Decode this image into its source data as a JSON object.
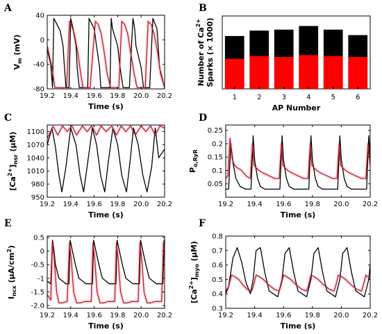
{
  "colors": {
    "black_trace": "#000000",
    "red_trace": "#b22222",
    "bar_black": "#000000",
    "bar_red": "#ff0000",
    "shade": "#ffd6e2"
  },
  "chart_data": [
    {
      "panel": "A",
      "type": "line",
      "xlabel": "Time (s)",
      "ylabel_main": "V",
      "ylabel_sub": "m",
      "ylabel_tail": " (mV)",
      "xlim": [
        19.2,
        20.2
      ],
      "ylim": [
        -80,
        40
      ],
      "xticks": [
        19.2,
        19.4,
        19.6,
        19.8,
        20.0,
        20.2
      ],
      "xtick_labels": [
        "19.2",
        "19.4",
        "19.6",
        "19.8",
        "20.0",
        "20.2"
      ],
      "yticks": [
        -80,
        -40,
        0,
        40
      ],
      "ytick_labels": [
        "-80",
        "-40",
        "0",
        "40"
      ],
      "series": [
        {
          "color_key": "black_trace",
          "x": [
            19.2,
            19.23,
            19.245,
            19.256,
            19.31,
            19.335,
            19.345,
            19.36,
            19.386,
            19.4,
            19.42,
            19.446,
            19.455,
            19.473,
            19.5,
            19.53,
            19.545,
            19.556,
            19.6,
            19.62,
            19.646,
            19.656,
            19.673,
            19.71,
            19.735,
            19.745,
            19.756,
            19.8,
            19.82,
            19.846,
            19.855,
            19.873,
            19.9,
            19.93,
            19.945,
            19.956,
            20.0,
            20.02,
            20.046,
            20.055,
            20.073,
            20.1,
            20.135,
            20.145,
            20.156,
            20.2
          ],
          "y": [
            -15,
            -40,
            -78,
            35,
            15,
            -10,
            -40,
            -78,
            -78,
            35,
            18,
            -10,
            -45,
            -78,
            -78,
            -78,
            -78,
            35,
            18,
            -10,
            -45,
            -78,
            -78,
            -78,
            -78,
            35,
            18,
            -10,
            -45,
            -78,
            -78,
            -78,
            -78,
            35,
            18,
            -10,
            -45,
            -78,
            -78,
            -78,
            -78,
            35,
            18,
            -10,
            -45,
            -78
          ]
        },
        {
          "color_key": "red_trace",
          "x": [
            19.2,
            19.24,
            19.265,
            19.3,
            19.34,
            19.365,
            19.39,
            19.405,
            19.43,
            19.46,
            19.485,
            19.505,
            19.54,
            19.565,
            19.61,
            19.635,
            19.66,
            19.685,
            19.71,
            19.74,
            19.765,
            19.81,
            19.835,
            19.86,
            19.885,
            19.91,
            19.94,
            19.965,
            20.01,
            20.035,
            20.06,
            20.085,
            20.11,
            20.14,
            20.165,
            20.2
          ],
          "y": [
            -10,
            -45,
            -78,
            -78,
            -78,
            -78,
            30,
            25,
            10,
            -20,
            -55,
            -78,
            -78,
            -78,
            30,
            25,
            10,
            -20,
            -55,
            -78,
            -78,
            -78,
            30,
            25,
            10,
            -20,
            -55,
            -78,
            -78,
            -78,
            30,
            25,
            10,
            -20,
            -55,
            -78
          ]
        }
      ]
    },
    {
      "panel": "B",
      "type": "bar",
      "xlabel": "AP Number",
      "ylabel_line1": "Number of Ca",
      "ylabel_sup": "2+",
      "ylabel_line2": "Sparks (× 1000)",
      "categories": [
        "1",
        "2",
        "3",
        "4",
        "5",
        "6"
      ],
      "ylim": [
        0,
        80
      ],
      "series": [
        {
          "color_key": "bar_black",
          "values": [
            58,
            64,
            65,
            69,
            65,
            59
          ]
        },
        {
          "color_key": "bar_red",
          "values": [
            33,
            36,
            35,
            37,
            36,
            35
          ]
        }
      ]
    },
    {
      "panel": "C",
      "type": "line",
      "xlabel": "Time (s)",
      "ylabel_pre": "[Ca",
      "ylabel_sup": "2+",
      "ylabel_mid": "]",
      "ylabel_sub": "nsr",
      "ylabel_tail": " (μM)",
      "xlim": [
        19.2,
        20.2
      ],
      "ylim": [
        950,
        1115
      ],
      "xticks": [
        19.2,
        19.4,
        19.6,
        19.8,
        20.0,
        20.2
      ],
      "xtick_labels": [
        "19.2",
        "19.4",
        "19.6",
        "19.8",
        "20.0",
        "20.2"
      ],
      "yticks": [
        950,
        980,
        1010,
        1040,
        1070,
        1100
      ],
      "ytick_labels": [
        "950",
        "980",
        "1010",
        "1040",
        "1070",
        "1100"
      ],
      "series": [
        {
          "color_key": "black_trace",
          "x": [
            19.2,
            19.24,
            19.27,
            19.3,
            19.325,
            19.36,
            19.4,
            19.445,
            19.48,
            19.51,
            19.545,
            19.585,
            19.62,
            19.655,
            19.69,
            19.72,
            19.76,
            19.8,
            19.835,
            19.875,
            19.905,
            19.935,
            19.975,
            20.015,
            20.05,
            20.09,
            20.12,
            20.15,
            20.2
          ],
          "y": [
            1070,
            1108,
            1065,
            1000,
            962,
            1020,
            1108,
            1070,
            1000,
            962,
            1030,
            1108,
            1070,
            1000,
            962,
            1030,
            1108,
            1070,
            1000,
            962,
            1030,
            1108,
            1070,
            1000,
            962,
            1020,
            1108,
            1040,
            1060
          ]
        },
        {
          "color_key": "red_trace",
          "x": [
            19.2,
            19.25,
            19.29,
            19.33,
            19.37,
            19.41,
            19.45,
            19.5,
            19.54,
            19.58,
            19.62,
            19.66,
            19.7,
            19.75,
            19.79,
            19.83,
            19.87,
            19.91,
            19.95,
            20.0,
            20.04,
            20.08,
            20.12,
            20.16,
            20.2
          ],
          "y": [
            1085,
            1112,
            1092,
            1113,
            1100,
            1113,
            1092,
            1113,
            1100,
            1113,
            1092,
            1113,
            1100,
            1113,
            1092,
            1113,
            1100,
            1113,
            1092,
            1113,
            1100,
            1113,
            1092,
            1113,
            1108
          ]
        }
      ]
    },
    {
      "panel": "D",
      "type": "line",
      "ylabel_main": "P",
      "ylabel_sub": "o,RyR",
      "xlabel": "Time (s)",
      "xlim": [
        19.2,
        20.2
      ],
      "ylim": [
        0,
        0.27
      ],
      "xticks": [
        19.2,
        19.4,
        19.6,
        19.8,
        20.0,
        20.2
      ],
      "xtick_labels": [
        "19.2",
        "19.4",
        "19.6",
        "19.8",
        "20.0",
        "20.2"
      ],
      "yticks": [
        0.05,
        0.1,
        0.15,
        0.2,
        0.25
      ],
      "ytick_labels": [
        "0.05",
        "0.1",
        "0.15",
        "0.2",
        "0.25"
      ],
      "series": [
        {
          "color_key": "black_trace",
          "x": [
            19.2,
            19.22,
            19.235,
            19.25,
            19.27,
            19.3,
            19.34,
            19.375,
            19.39,
            19.4,
            19.42,
            19.44,
            19.47,
            19.5,
            19.54,
            19.575,
            19.59,
            19.6,
            19.62,
            19.64,
            19.67,
            19.7,
            19.74,
            19.775,
            19.79,
            19.8,
            19.82,
            19.84,
            19.87,
            19.9,
            19.94,
            19.975,
            19.99,
            20.0,
            20.02,
            20.04,
            20.07,
            20.1,
            20.14,
            20.175,
            20.19,
            20.2
          ],
          "y": [
            0.03,
            0.03,
            0.2,
            0.13,
            0.07,
            0.04,
            0.03,
            0.03,
            0.23,
            0.14,
            0.07,
            0.04,
            0.03,
            0.03,
            0.03,
            0.03,
            0.23,
            0.14,
            0.07,
            0.04,
            0.03,
            0.03,
            0.03,
            0.03,
            0.23,
            0.14,
            0.07,
            0.04,
            0.03,
            0.03,
            0.03,
            0.03,
            0.23,
            0.14,
            0.07,
            0.04,
            0.03,
            0.03,
            0.03,
            0.03,
            0.23,
            0.14
          ]
        },
        {
          "color_key": "red_trace",
          "x": [
            19.2,
            19.215,
            19.23,
            19.245,
            19.26,
            19.28,
            19.31,
            19.34,
            19.37,
            19.385,
            19.395,
            19.41,
            19.43,
            19.46,
            19.5,
            19.54,
            19.57,
            19.585,
            19.595,
            19.61,
            19.63,
            19.66,
            19.7,
            19.74,
            19.77,
            19.785,
            19.795,
            19.81,
            19.83,
            19.86,
            19.9,
            19.94,
            19.97,
            19.985,
            19.995,
            20.01,
            20.03,
            20.06,
            20.1,
            20.14,
            20.17,
            20.185,
            20.2
          ],
          "y": [
            0.07,
            0.08,
            0.22,
            0.14,
            0.12,
            0.11,
            0.1,
            0.08,
            0.07,
            0.2,
            0.12,
            0.11,
            0.1,
            0.09,
            0.08,
            0.07,
            0.07,
            0.2,
            0.12,
            0.11,
            0.1,
            0.09,
            0.08,
            0.07,
            0.07,
            0.2,
            0.12,
            0.11,
            0.1,
            0.09,
            0.08,
            0.07,
            0.07,
            0.2,
            0.12,
            0.11,
            0.1,
            0.09,
            0.08,
            0.07,
            0.07,
            0.2,
            0.12
          ]
        }
      ]
    },
    {
      "panel": "E",
      "type": "line",
      "xlabel": "Time (s)",
      "ylabel_main": "I",
      "ylabel_sub": "ncx",
      "ylabel_tail": " (μA/cm",
      "ylabel_sup": "2",
      "ylabel_end": ")",
      "xlim": [
        19.2,
        20.2
      ],
      "ylim": [
        -2.1,
        0.55
      ],
      "xticks": [
        19.2,
        19.4,
        19.6,
        19.8,
        20.0,
        20.2
      ],
      "xtick_labels": [
        "19.2",
        "19.4",
        "19.6",
        "19.8",
        "20.0",
        "20.2"
      ],
      "yticks": [
        -2.0,
        -1.5,
        -1.0,
        -0.5,
        0.0,
        0.5
      ],
      "ytick_labels": [
        "-2.0",
        "-1.5",
        "-1",
        "-0.5",
        "0",
        "0.5"
      ],
      "series": [
        {
          "color_key": "black_trace",
          "x": [
            19.2,
            19.23,
            19.245,
            19.255,
            19.27,
            19.3,
            19.33,
            19.36,
            19.385,
            19.395,
            19.41,
            19.44,
            19.47,
            19.5,
            19.53,
            19.56,
            19.585,
            19.595,
            19.61,
            19.64,
            19.67,
            19.7,
            19.73,
            19.76,
            19.785,
            19.795,
            19.81,
            19.84,
            19.87,
            19.9,
            19.93,
            19.96,
            19.985,
            19.995,
            20.01,
            20.04,
            20.07,
            20.1,
            20.13,
            20.16,
            20.185,
            20.195,
            20.2
          ],
          "y": [
            -1.1,
            -1.2,
            0.4,
            0.1,
            -0.5,
            -1.0,
            -1.1,
            -1.2,
            -1.2,
            0.4,
            0.1,
            -0.5,
            -1.0,
            -1.1,
            -1.2,
            -1.2,
            -1.2,
            0.4,
            0.1,
            -0.5,
            -1.0,
            -1.1,
            -1.2,
            -1.2,
            -1.2,
            0.4,
            0.1,
            -0.5,
            -1.0,
            -1.1,
            -1.2,
            -1.2,
            -1.2,
            0.4,
            0.1,
            -0.5,
            -1.0,
            -1.1,
            -1.2,
            -1.2,
            -1.2,
            0.4,
            0.1
          ]
        },
        {
          "color_key": "red_trace",
          "x": [
            19.2,
            19.23,
            19.245,
            19.26,
            19.28,
            19.3,
            19.33,
            19.37,
            19.39,
            19.405,
            19.425,
            19.45,
            19.48,
            19.52,
            19.555,
            19.575,
            19.59,
            19.605,
            19.625,
            19.65,
            19.68,
            19.72,
            19.755,
            19.775,
            19.79,
            19.805,
            19.825,
            19.85,
            19.88,
            19.92,
            19.955,
            19.975,
            19.99,
            20.005,
            20.025,
            20.05,
            20.08,
            20.12,
            20.155,
            20.175,
            20.19,
            20.2
          ],
          "y": [
            -1.6,
            -1.8,
            0.3,
            -0.3,
            -1.5,
            -1.9,
            -1.9,
            -1.85,
            0.3,
            -0.3,
            -1.5,
            -1.9,
            -1.9,
            -1.85,
            -1.85,
            -1.85,
            0.3,
            -0.3,
            -1.5,
            -1.9,
            -1.9,
            -1.85,
            -1.85,
            -1.85,
            0.3,
            -0.3,
            -1.5,
            -1.9,
            -1.9,
            -1.85,
            -1.85,
            -1.85,
            0.3,
            -0.3,
            -1.5,
            -1.9,
            -1.9,
            -1.85,
            -1.85,
            -1.85,
            0.3,
            -0.3
          ]
        }
      ]
    },
    {
      "panel": "F",
      "type": "line",
      "xlabel": "Time (s)",
      "ylabel_pre": "[Ca",
      "ylabel_sup": "2+",
      "ylabel_mid": "]",
      "ylabel_sub": "myo",
      "ylabel_tail": " (μM)",
      "xlim": [
        19.2,
        20.2
      ],
      "ylim": [
        0.3,
        0.8
      ],
      "xticks": [
        19.2,
        19.4,
        19.6,
        19.8,
        20.0,
        20.2
      ],
      "xtick_labels": [
        "19.2",
        "19.4",
        "19.6",
        "19.8",
        "20.0",
        "20.2"
      ],
      "yticks": [
        0.3,
        0.4,
        0.5,
        0.6,
        0.7,
        0.8
      ],
      "ytick_labels": [
        "0.3",
        "0.4",
        "0.5",
        "0.6",
        "0.7",
        "0.8"
      ],
      "series": [
        {
          "color_key": "black_trace",
          "x": [
            19.2,
            19.22,
            19.25,
            19.28,
            19.31,
            19.34,
            19.37,
            19.39,
            19.41,
            19.44,
            19.47,
            19.5,
            19.53,
            19.56,
            19.59,
            19.61,
            19.64,
            19.67,
            19.7,
            19.73,
            19.76,
            19.79,
            19.81,
            19.84,
            19.87,
            19.9,
            19.93,
            19.96,
            19.99,
            20.01,
            20.04,
            20.07,
            20.1,
            20.13,
            20.16,
            20.19,
            20.2
          ],
          "y": [
            0.4,
            0.45,
            0.65,
            0.72,
            0.62,
            0.48,
            0.4,
            0.5,
            0.7,
            0.72,
            0.55,
            0.42,
            0.4,
            0.38,
            0.5,
            0.68,
            0.72,
            0.55,
            0.42,
            0.4,
            0.38,
            0.5,
            0.68,
            0.72,
            0.55,
            0.42,
            0.4,
            0.38,
            0.5,
            0.68,
            0.72,
            0.55,
            0.42,
            0.4,
            0.38,
            0.5,
            0.6
          ]
        },
        {
          "color_key": "red_trace",
          "x": [
            19.2,
            19.22,
            19.24,
            19.26,
            19.29,
            19.32,
            19.35,
            19.38,
            19.39,
            19.41,
            19.43,
            19.46,
            19.5,
            19.54,
            19.57,
            19.58,
            19.6,
            19.62,
            19.65,
            19.69,
            19.73,
            19.76,
            19.77,
            19.79,
            19.81,
            19.84,
            19.88,
            19.92,
            19.95,
            19.96,
            19.98,
            20.0,
            20.03,
            20.07,
            20.11,
            20.14,
            20.15,
            20.17,
            20.2
          ],
          "y": [
            0.42,
            0.45,
            0.53,
            0.52,
            0.5,
            0.46,
            0.43,
            0.42,
            0.45,
            0.53,
            0.52,
            0.5,
            0.46,
            0.43,
            0.42,
            0.45,
            0.53,
            0.52,
            0.5,
            0.46,
            0.43,
            0.42,
            0.45,
            0.53,
            0.52,
            0.5,
            0.46,
            0.43,
            0.42,
            0.45,
            0.53,
            0.52,
            0.5,
            0.46,
            0.43,
            0.42,
            0.45,
            0.53,
            0.5
          ]
        }
      ]
    }
  ]
}
